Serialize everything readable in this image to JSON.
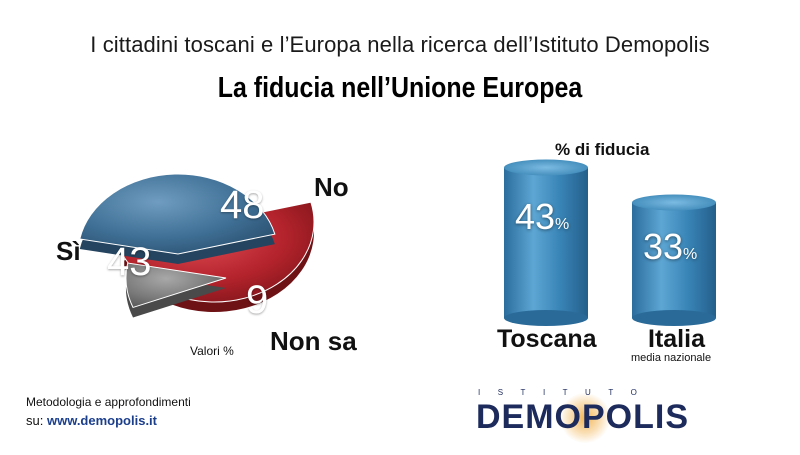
{
  "header": {
    "subtitle": "I cittadini toscani e l’Europa nella ricerca dell’Istituto Demopolis",
    "title": "La fiducia nell’Unione Europea"
  },
  "colors": {
    "si": "#3f6f95",
    "no": "#b3232c",
    "non_sa": "#7a7a7a",
    "bar": "#3a86b8",
    "logo": "#1c2a5c"
  },
  "chart_data": [
    {
      "type": "pie",
      "title": "",
      "note": "Valori %",
      "slices": [
        {
          "label": "No",
          "value": 48,
          "color": "#b3232c"
        },
        {
          "label": "Non sa",
          "value": 9,
          "color": "#7a7a7a"
        },
        {
          "label": "Sì",
          "value": 43,
          "color": "#3f6f95"
        }
      ]
    },
    {
      "type": "bar",
      "title": "% di fiducia",
      "categories": [
        "Toscana",
        "Italia"
      ],
      "category_notes": [
        "",
        "media nazionale"
      ],
      "values": [
        43,
        33
      ],
      "value_suffix": "%",
      "ylim": [
        0,
        50
      ]
    }
  ],
  "footer": {
    "metodo_line1": "Metodologia e approfondimenti",
    "metodo_prefix": "su: ",
    "metodo_url": "www.demopolis.it",
    "logo_top": "ISTITUTO",
    "logo_main": "DEMOPOLIS"
  }
}
